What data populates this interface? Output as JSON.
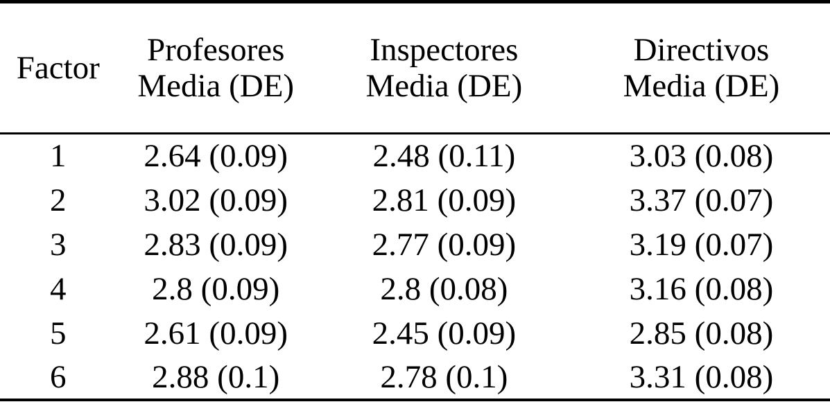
{
  "table": {
    "columns": [
      {
        "label": "Factor",
        "sublabel": ""
      },
      {
        "label": "Profesores",
        "sublabel": "Media (DE)"
      },
      {
        "label": "Inspectores",
        "sublabel": "Media (DE)"
      },
      {
        "label": "Directivos",
        "sublabel": "Media (DE)"
      }
    ],
    "rows": [
      [
        "1",
        "2.64 (0.09)",
        "2.48 (0.11)",
        "3.03 (0.08)"
      ],
      [
        "2",
        "3.02 (0.09)",
        "2.81 (0.09)",
        "3.37 (0.07)"
      ],
      [
        "3",
        "2.83 (0.09)",
        "2.77 (0.09)",
        "3.19 (0.07)"
      ],
      [
        "4",
        "2.8 (0.09)",
        "2.8 (0.08)",
        "3.16 (0.08)"
      ],
      [
        "5",
        "2.61 (0.09)",
        "2.45 (0.09)",
        "2.85 (0.08)"
      ],
      [
        "6",
        "2.88 (0.1)",
        "2.78 (0.1)",
        "3.31 (0.08)"
      ]
    ]
  },
  "colors": {
    "text": "#000000",
    "background": "#ffffff",
    "rule": "#000000"
  },
  "chart_data": {
    "type": "table",
    "title": "",
    "xlabel": "Factor",
    "categories": [
      "1",
      "2",
      "3",
      "4",
      "5",
      "6"
    ],
    "series": [
      {
        "name": "Profesores Media (DE)",
        "mean": [
          2.64,
          3.02,
          2.83,
          2.8,
          2.61,
          2.88
        ],
        "sd": [
          0.09,
          0.09,
          0.09,
          0.09,
          0.09,
          0.1
        ]
      },
      {
        "name": "Inspectores Media (DE)",
        "mean": [
          2.48,
          2.81,
          2.77,
          2.8,
          2.45,
          2.78
        ],
        "sd": [
          0.11,
          0.09,
          0.09,
          0.08,
          0.09,
          0.1
        ]
      },
      {
        "name": "Directivos Media (DE)",
        "mean": [
          3.03,
          3.37,
          3.19,
          3.16,
          2.85,
          3.31
        ],
        "sd": [
          0.08,
          0.07,
          0.07,
          0.08,
          0.08,
          0.08
        ]
      }
    ]
  }
}
